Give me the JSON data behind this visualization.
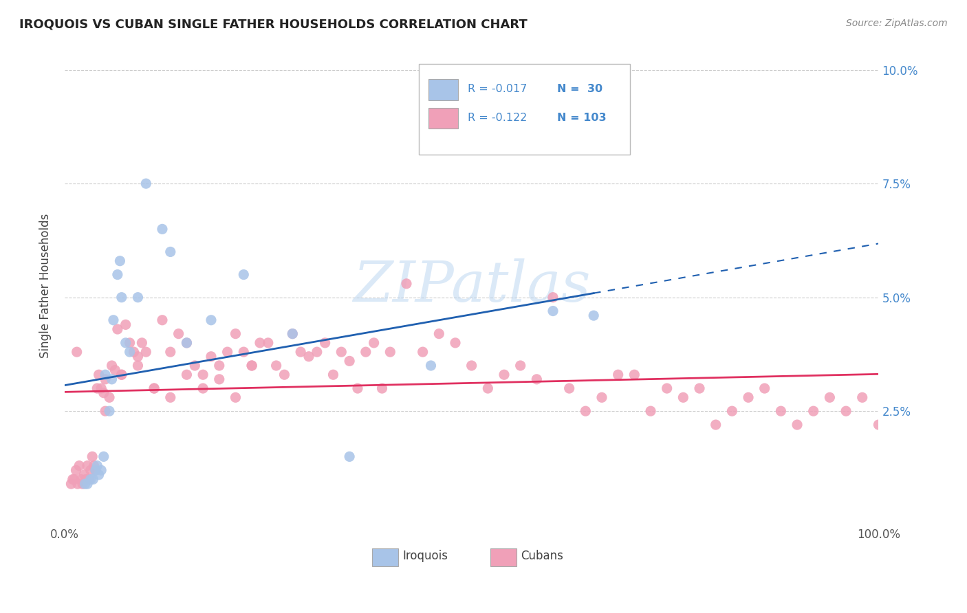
{
  "title": "IROQUOIS VS CUBAN SINGLE FATHER HOUSEHOLDS CORRELATION CHART",
  "source": "Source: ZipAtlas.com",
  "ylabel": "Single Father Households",
  "yticks": [
    0.025,
    0.05,
    0.075,
    0.1
  ],
  "ytick_labels": [
    "2.5%",
    "5.0%",
    "7.5%",
    "10.0%"
  ],
  "legend_labels": [
    "Iroquois",
    "Cubans"
  ],
  "legend_r": [
    -0.017,
    -0.122
  ],
  "legend_n": [
    30,
    103
  ],
  "iroquois_color": "#a8c4e8",
  "cuban_color": "#f0a0b8",
  "iroquois_line_color": "#2060b0",
  "cuban_line_color": "#e03060",
  "xlim": [
    0.0,
    1.0
  ],
  "ylim": [
    0.0,
    0.105
  ],
  "background_color": "#ffffff",
  "grid_color": "#cccccc",
  "watermark_text": "ZIPatlas",
  "iroquois_x": [
    0.025,
    0.028,
    0.032,
    0.035,
    0.038,
    0.04,
    0.042,
    0.045,
    0.048,
    0.05,
    0.055,
    0.058,
    0.06,
    0.065,
    0.068,
    0.07,
    0.075,
    0.08,
    0.09,
    0.1,
    0.12,
    0.13,
    0.15,
    0.18,
    0.22,
    0.28,
    0.35,
    0.45,
    0.6,
    0.65
  ],
  "iroquois_y": [
    0.009,
    0.009,
    0.01,
    0.01,
    0.012,
    0.013,
    0.011,
    0.012,
    0.015,
    0.033,
    0.025,
    0.032,
    0.045,
    0.055,
    0.058,
    0.05,
    0.04,
    0.038,
    0.05,
    0.075,
    0.065,
    0.06,
    0.04,
    0.045,
    0.055,
    0.042,
    0.015,
    0.035,
    0.047,
    0.046
  ],
  "cuban_x": [
    0.008,
    0.01,
    0.012,
    0.014,
    0.016,
    0.018,
    0.02,
    0.022,
    0.024,
    0.026,
    0.028,
    0.03,
    0.032,
    0.034,
    0.036,
    0.038,
    0.04,
    0.042,
    0.045,
    0.048,
    0.05,
    0.055,
    0.058,
    0.062,
    0.065,
    0.07,
    0.075,
    0.08,
    0.085,
    0.09,
    0.095,
    0.1,
    0.11,
    0.12,
    0.13,
    0.14,
    0.15,
    0.16,
    0.17,
    0.18,
    0.19,
    0.2,
    0.21,
    0.22,
    0.23,
    0.24,
    0.25,
    0.26,
    0.27,
    0.28,
    0.29,
    0.3,
    0.31,
    0.32,
    0.33,
    0.34,
    0.35,
    0.36,
    0.37,
    0.38,
    0.39,
    0.4,
    0.42,
    0.44,
    0.46,
    0.48,
    0.5,
    0.52,
    0.54,
    0.56,
    0.58,
    0.6,
    0.62,
    0.64,
    0.66,
    0.68,
    0.7,
    0.72,
    0.74,
    0.76,
    0.78,
    0.8,
    0.82,
    0.84,
    0.86,
    0.88,
    0.9,
    0.92,
    0.94,
    0.96,
    0.98,
    1.0,
    0.015,
    0.05,
    0.07,
    0.09,
    0.11,
    0.13,
    0.15,
    0.17,
    0.19,
    0.21,
    0.23
  ],
  "cuban_y": [
    0.009,
    0.01,
    0.01,
    0.012,
    0.009,
    0.013,
    0.01,
    0.009,
    0.011,
    0.01,
    0.013,
    0.01,
    0.012,
    0.015,
    0.013,
    0.012,
    0.03,
    0.033,
    0.03,
    0.029,
    0.032,
    0.028,
    0.035,
    0.034,
    0.043,
    0.033,
    0.044,
    0.04,
    0.038,
    0.037,
    0.04,
    0.038,
    0.03,
    0.045,
    0.038,
    0.042,
    0.04,
    0.035,
    0.033,
    0.037,
    0.035,
    0.038,
    0.042,
    0.038,
    0.035,
    0.04,
    0.04,
    0.035,
    0.033,
    0.042,
    0.038,
    0.037,
    0.038,
    0.04,
    0.033,
    0.038,
    0.036,
    0.03,
    0.038,
    0.04,
    0.03,
    0.038,
    0.053,
    0.038,
    0.042,
    0.04,
    0.035,
    0.03,
    0.033,
    0.035,
    0.032,
    0.05,
    0.03,
    0.025,
    0.028,
    0.033,
    0.033,
    0.025,
    0.03,
    0.028,
    0.03,
    0.022,
    0.025,
    0.028,
    0.03,
    0.025,
    0.022,
    0.025,
    0.028,
    0.025,
    0.028,
    0.022,
    0.038,
    0.025,
    0.033,
    0.035,
    0.03,
    0.028,
    0.033,
    0.03,
    0.032,
    0.028,
    0.035
  ]
}
